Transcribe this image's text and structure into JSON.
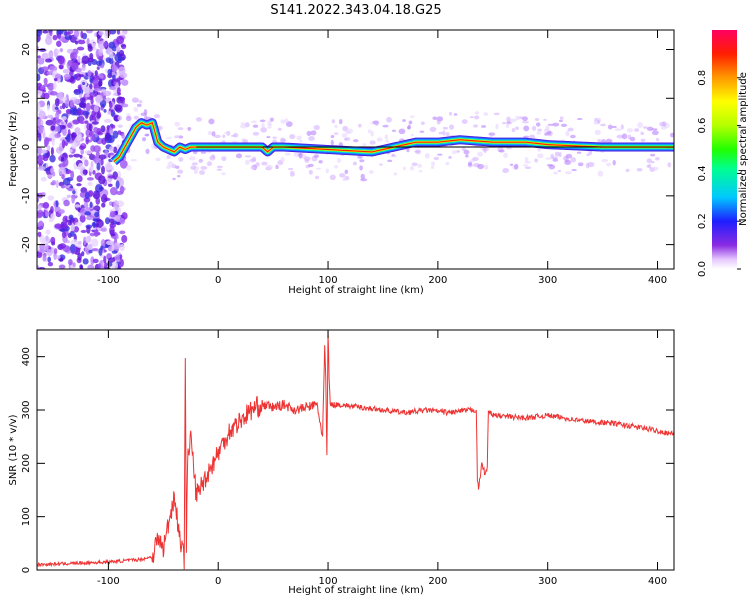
{
  "figure_title": "S141.2022.343.04.18.G25",
  "chart_data": [
    {
      "type": "heatmap",
      "xlabel": "Height of straight line (km)",
      "ylabel": "Frequency (Hz)",
      "xlim": [
        -165,
        415
      ],
      "ylim": [
        -25,
        24
      ],
      "xticks": [
        -100,
        0,
        100,
        200,
        300,
        400
      ],
      "yticks": [
        -20,
        -10,
        0,
        10,
        20
      ],
      "colorbar": {
        "label": "Normalized spectral amplitude",
        "range": [
          0,
          1
        ],
        "ticks": [
          "0.0",
          "0.2",
          "0.4",
          "0.6",
          "0.8"
        ],
        "colormap": "rainbow"
      },
      "ridge": {
        "x": [
          -95,
          -90,
          -85,
          -80,
          -75,
          -70,
          -65,
          -60,
          -55,
          -50,
          -45,
          -40,
          -35,
          -30,
          -25,
          -20,
          0,
          40,
          45,
          50,
          60,
          100,
          140,
          160,
          180,
          200,
          220,
          250,
          280,
          300,
          350,
          415
        ],
        "y": [
          -3,
          -2,
          0,
          2,
          4,
          5,
          4.5,
          5,
          1,
          0,
          -0.5,
          -1,
          0,
          -0.5,
          0,
          0,
          0,
          0,
          -1,
          0,
          0,
          -0.5,
          -1,
          0,
          1,
          1,
          1.5,
          1,
          1,
          0.5,
          0,
          0
        ]
      },
      "noise_region_x": [
        -165,
        -90
      ]
    },
    {
      "type": "line",
      "xlabel": "Height of straight line (km)",
      "ylabel": "SNR (10 * v/v)",
      "xlim": [
        -165,
        415
      ],
      "ylim": [
        0,
        450
      ],
      "xticks": [
        -100,
        0,
        100,
        200,
        300,
        400
      ],
      "yticks": [
        0,
        100,
        200,
        300,
        400
      ],
      "color": "#ee3333",
      "points": {
        "x": [
          -165,
          -100,
          -70,
          -60,
          -55,
          -50,
          -45,
          -40,
          -35,
          -31,
          -30,
          -29,
          -28,
          -25,
          -20,
          -10,
          0,
          10,
          20,
          30,
          40,
          50,
          60,
          70,
          80,
          90,
          95,
          97,
          98,
          99,
          100,
          101,
          102,
          110,
          130,
          150,
          170,
          190,
          210,
          230,
          235,
          236,
          237,
          240,
          243,
          245,
          246,
          250,
          280,
          300,
          330,
          360,
          390,
          415
        ],
        "y": [
          10,
          15,
          20,
          25,
          60,
          40,
          90,
          140,
          60,
          20,
          410,
          50,
          200,
          250,
          140,
          180,
          220,
          260,
          280,
          300,
          310,
          305,
          310,
          300,
          305,
          310,
          250,
          420,
          350,
          210,
          445,
          360,
          310,
          310,
          305,
          300,
          295,
          300,
          295,
          300,
          300,
          170,
          150,
          200,
          180,
          190,
          300,
          290,
          285,
          290,
          280,
          275,
          265,
          255
        ]
      }
    }
  ]
}
